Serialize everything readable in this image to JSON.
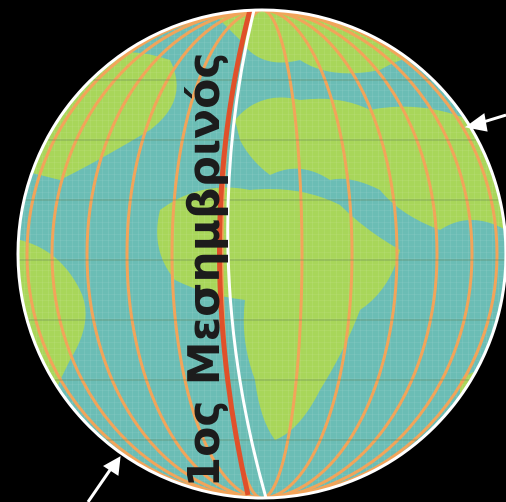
{
  "label": "1ος Μεσημβρινός"
}
